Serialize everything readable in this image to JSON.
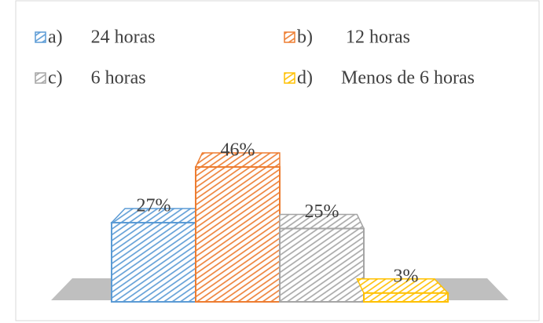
{
  "chart_data": {
    "type": "bar",
    "categories": [
      "a)      24 horas",
      "b)       12 horas",
      "c)      6 horas",
      "d)      Menos de 6 horas"
    ],
    "values": [
      27,
      46,
      25,
      3
    ],
    "value_labels": [
      "27%",
      "46%",
      "25%",
      "3%"
    ],
    "colors": [
      "#5b9bd5",
      "#ed7d31",
      "#a5a5a5",
      "#ffc000"
    ],
    "legend": "top"
  }
}
